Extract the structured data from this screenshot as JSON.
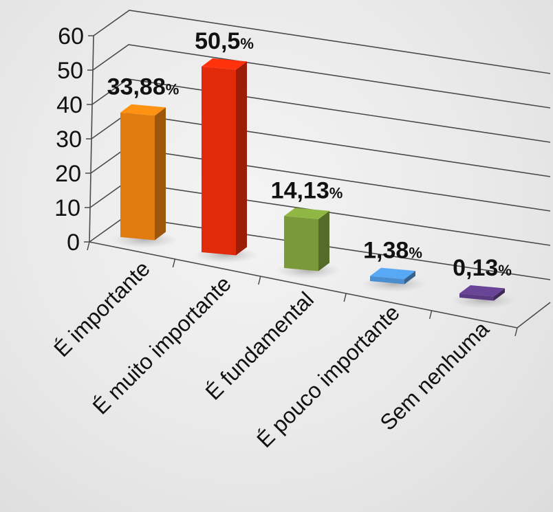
{
  "chart_data": {
    "type": "bar",
    "categories": [
      "É importante",
      "É muito importante",
      "É fundamental",
      "É pouco importante",
      "Sem nenhuma"
    ],
    "values": [
      33.88,
      50.5,
      14.13,
      1.38,
      0.13
    ],
    "value_labels": [
      "33,88",
      "50,5",
      "14,13",
      "1,38",
      "0,13"
    ],
    "value_suffix": "%",
    "ylim": [
      0,
      60
    ],
    "yticks": [
      "0",
      "10",
      "20",
      "30",
      "40",
      "50",
      "60"
    ],
    "grid": true,
    "colors": [
      "#E07B10",
      "#E02A0A",
      "#7A9A3A",
      "#4A8ED0",
      "#5A3A80"
    ],
    "title": "",
    "xlabel": "",
    "ylabel": ""
  }
}
